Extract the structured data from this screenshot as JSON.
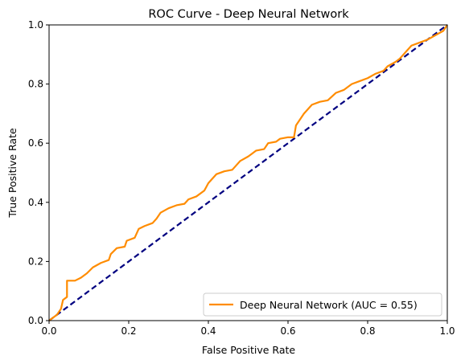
{
  "chart_data": {
    "type": "line",
    "title": "ROC Curve - Deep Neural Network",
    "xlabel": "False Positive Rate",
    "ylabel": "True Positive Rate",
    "xlim": [
      0,
      1
    ],
    "ylim": [
      0,
      1
    ],
    "x_ticks": [
      "0.0",
      "0.2",
      "0.4",
      "0.6",
      "0.8",
      "1.0"
    ],
    "y_ticks": [
      "0.0",
      "0.2",
      "0.4",
      "0.6",
      "0.8",
      "1.0"
    ],
    "grid": false,
    "legend_position": "lower-right",
    "series": [
      {
        "name": "Deep Neural Network (AUC = 0.55)",
        "color": "#ff8c00",
        "style": "solid",
        "points": [
          [
            0.0,
            0.0
          ],
          [
            0.01,
            0.01
          ],
          [
            0.02,
            0.02
          ],
          [
            0.03,
            0.04
          ],
          [
            0.035,
            0.07
          ],
          [
            0.045,
            0.08
          ],
          [
            0.045,
            0.135
          ],
          [
            0.065,
            0.135
          ],
          [
            0.08,
            0.145
          ],
          [
            0.095,
            0.16
          ],
          [
            0.11,
            0.18
          ],
          [
            0.13,
            0.195
          ],
          [
            0.15,
            0.205
          ],
          [
            0.155,
            0.225
          ],
          [
            0.17,
            0.245
          ],
          [
            0.19,
            0.25
          ],
          [
            0.195,
            0.27
          ],
          [
            0.215,
            0.28
          ],
          [
            0.225,
            0.31
          ],
          [
            0.24,
            0.32
          ],
          [
            0.26,
            0.33
          ],
          [
            0.27,
            0.345
          ],
          [
            0.28,
            0.365
          ],
          [
            0.3,
            0.38
          ],
          [
            0.32,
            0.39
          ],
          [
            0.34,
            0.395
          ],
          [
            0.35,
            0.41
          ],
          [
            0.37,
            0.42
          ],
          [
            0.39,
            0.44
          ],
          [
            0.4,
            0.465
          ],
          [
            0.41,
            0.48
          ],
          [
            0.42,
            0.495
          ],
          [
            0.44,
            0.505
          ],
          [
            0.46,
            0.51
          ],
          [
            0.47,
            0.525
          ],
          [
            0.48,
            0.54
          ],
          [
            0.5,
            0.555
          ],
          [
            0.51,
            0.565
          ],
          [
            0.52,
            0.575
          ],
          [
            0.54,
            0.58
          ],
          [
            0.55,
            0.6
          ],
          [
            0.57,
            0.605
          ],
          [
            0.58,
            0.615
          ],
          [
            0.6,
            0.62
          ],
          [
            0.615,
            0.62
          ],
          [
            0.62,
            0.66
          ],
          [
            0.63,
            0.68
          ],
          [
            0.64,
            0.7
          ],
          [
            0.65,
            0.715
          ],
          [
            0.66,
            0.73
          ],
          [
            0.68,
            0.74
          ],
          [
            0.7,
            0.745
          ],
          [
            0.72,
            0.77
          ],
          [
            0.74,
            0.78
          ],
          [
            0.76,
            0.8
          ],
          [
            0.78,
            0.81
          ],
          [
            0.8,
            0.82
          ],
          [
            0.82,
            0.835
          ],
          [
            0.84,
            0.845
          ],
          [
            0.85,
            0.86
          ],
          [
            0.87,
            0.875
          ],
          [
            0.88,
            0.885
          ],
          [
            0.89,
            0.9
          ],
          [
            0.9,
            0.915
          ],
          [
            0.91,
            0.93
          ],
          [
            0.93,
            0.94
          ],
          [
            0.95,
            0.95
          ],
          [
            0.97,
            0.965
          ],
          [
            0.99,
            0.98
          ],
          [
            1.0,
            1.0
          ]
        ]
      },
      {
        "name": "",
        "color": "#000080",
        "style": "dashed",
        "points": [
          [
            0,
            0
          ],
          [
            1,
            1
          ]
        ]
      }
    ]
  }
}
